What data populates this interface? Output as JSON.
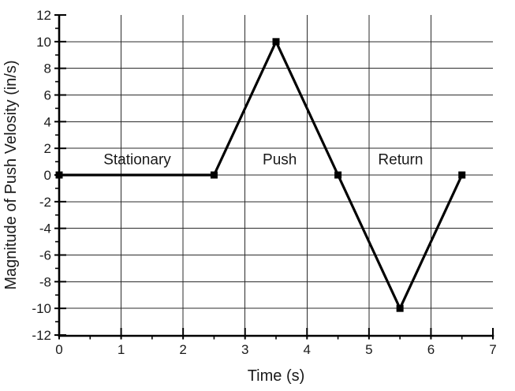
{
  "chart_data": {
    "type": "line",
    "title": "",
    "xlabel": "Time (s)",
    "ylabel": "Magnitude of Push Velosity (in/s)",
    "xlim": [
      0,
      7
    ],
    "ylim": [
      -12,
      12
    ],
    "x_major_ticks": [
      0,
      1,
      2,
      3,
      4,
      5,
      6,
      7
    ],
    "x_minor_ticks": [
      0.5,
      1.5,
      2.5,
      3.5,
      4.5,
      5.5,
      6.5
    ],
    "y_major_ticks": [
      -12,
      -10,
      -8,
      -6,
      -4,
      -2,
      0,
      2,
      4,
      6,
      8,
      10,
      12
    ],
    "y_minor_ticks": [
      -11,
      -9,
      -7,
      -5,
      -3,
      -1,
      1,
      3,
      5,
      7,
      9,
      11
    ],
    "grid": true,
    "grid_color": "#2b2b2b",
    "line_color": "#000000",
    "marker": "square",
    "legend": "none",
    "series": [
      {
        "name": "push-velocity",
        "x": [
          0,
          2.5,
          3.5,
          4.5,
          5.5,
          6.5
        ],
        "y": [
          0,
          0,
          10,
          0,
          -10,
          0
        ]
      }
    ],
    "annotations": [
      {
        "text": "Stationary",
        "x": 1.26,
        "y": 1.15
      },
      {
        "text": "Push",
        "x": 3.56,
        "y": 1.15
      },
      {
        "text": "Return",
        "x": 5.51,
        "y": 1.15
      }
    ]
  }
}
